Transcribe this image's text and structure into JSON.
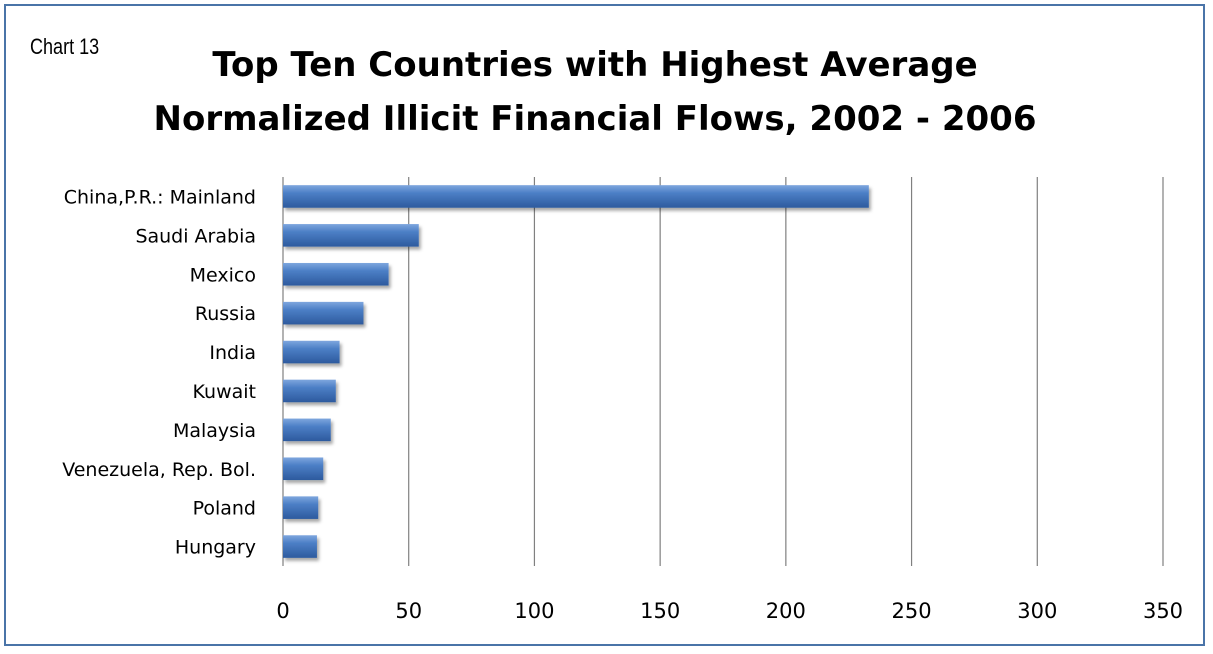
{
  "chart_number_label": "Chart 13",
  "title_lines": [
    "Top Ten Countries with Highest Average",
    "Normalized Illicit Financial Flows, 2002 - 2006"
  ],
  "colors": {
    "bar": "#3d6fb8",
    "bar_light": "#6b98d6",
    "bar_dark": "#2a5597",
    "grid": "#808080",
    "border": "#4a74a8"
  },
  "chart_data": {
    "type": "bar",
    "orientation": "horizontal",
    "title": "Top Ten Countries with Highest Average Normalized Illicit Financial Flows, 2002 - 2006",
    "categories": [
      "China,P.R.: Mainland",
      "Saudi Arabia",
      "Mexico",
      "Russia",
      "India",
      "Kuwait",
      "Malaysia",
      "Venezuela, Rep. Bol.",
      "Poland",
      "Hungary"
    ],
    "values": [
      233,
      54,
      42,
      32,
      22.5,
      21,
      19,
      16,
      14,
      13.5
    ],
    "xlim": [
      0,
      350
    ],
    "xticks": [
      0,
      50,
      100,
      150,
      200,
      250,
      300,
      350
    ],
    "xlabel": "",
    "ylabel": "",
    "grid": "vertical",
    "legend": "none"
  }
}
